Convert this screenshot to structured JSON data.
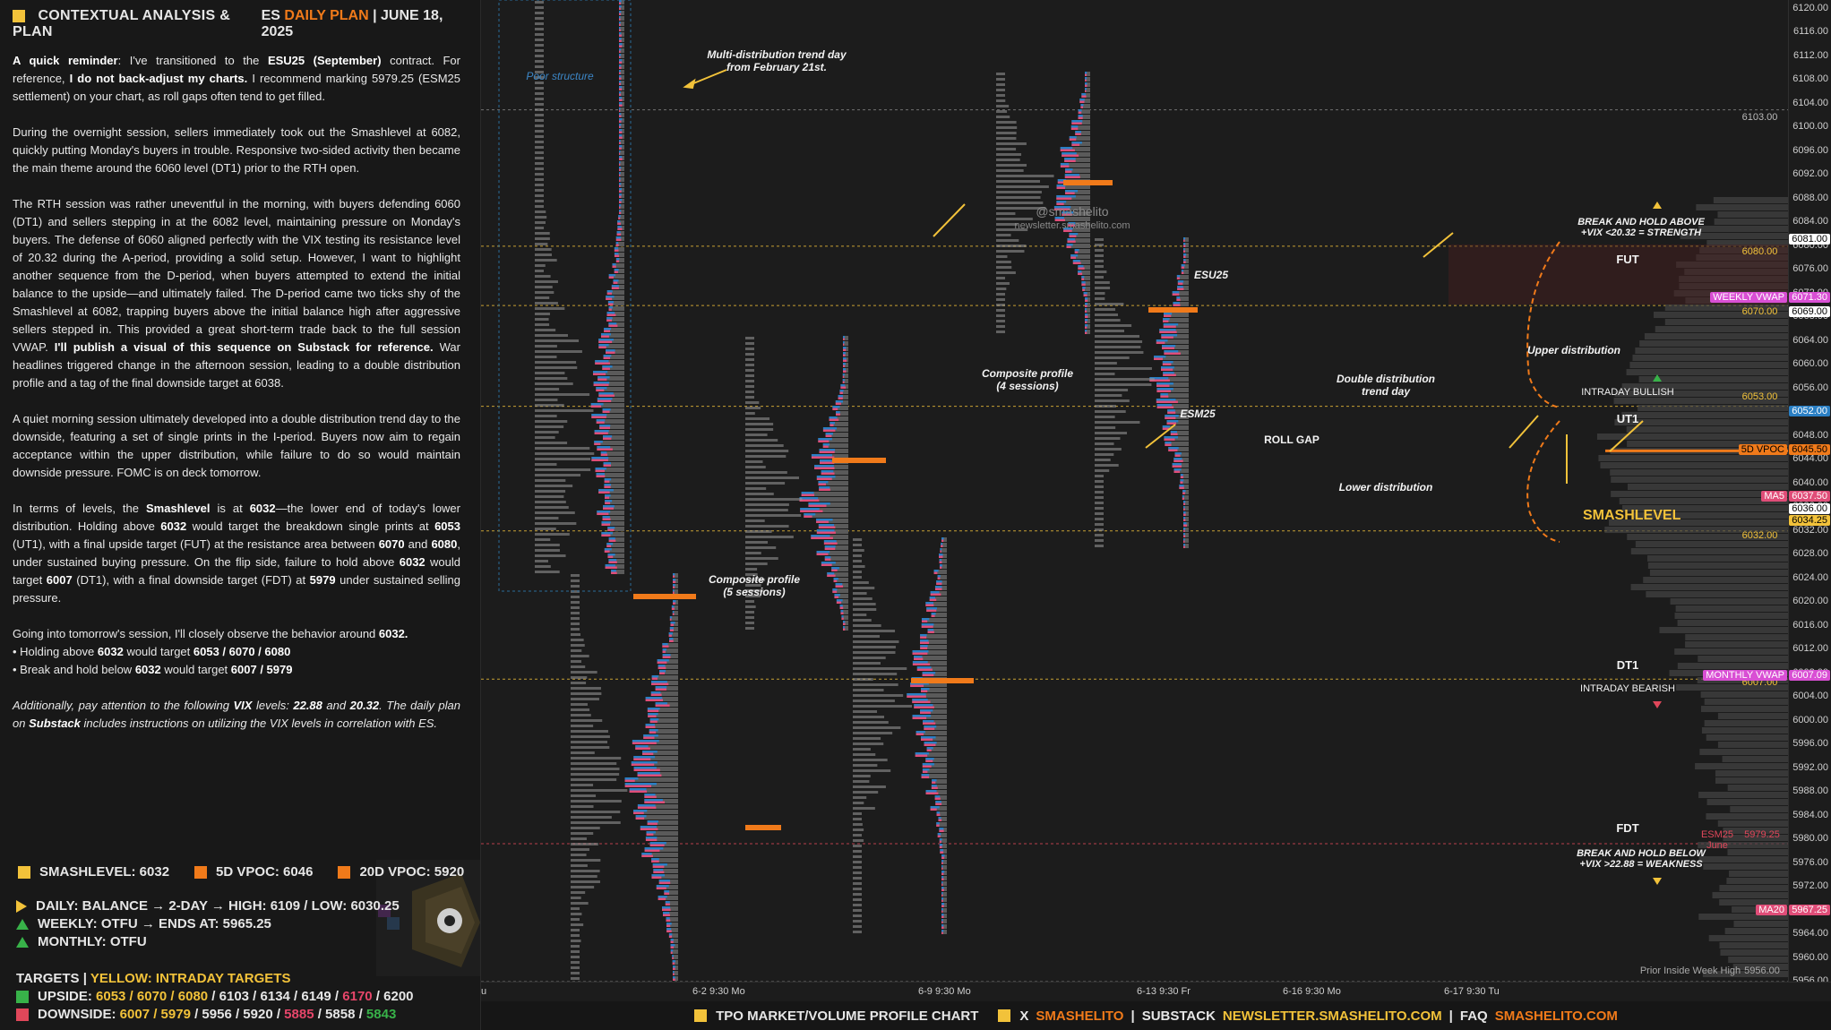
{
  "header": {
    "title": "CONTEXTUAL ANALYSIS & PLAN",
    "symbol": "ES",
    "plan": "DAILY PLAN",
    "sep": "|",
    "date": "JUNE 18, 2025"
  },
  "paragraphs": {
    "p1_a": "A quick reminder",
    "p1_b": ": I've transitioned to the ",
    "p1_c": "ESU25 (September)",
    "p1_d": " contract. For reference, ",
    "p1_e": "I do not back-adjust my charts.",
    "p1_f": " I recommend marking 5979.25 (ESM25 settlement) on your chart, as roll gaps often tend to get filled.",
    "p2": "During the overnight session, sellers immediately took out the Smashlevel at 6082, quickly putting Monday's buyers in trouble. Responsive two-sided activity then became the main theme around the 6060 level (DT1) prior to the RTH open.",
    "p3_a": "The RTH session was rather uneventful in the morning, with buyers defending 6060 (DT1) and sellers stepping in at the 6082 level, maintaining pressure on Monday's buyers. The defense of 6060 aligned perfectly with the VIX testing its resistance level of 20.32 during the A-period, providing a solid setup. However, I want to highlight another sequence from the D-period, when buyers attempted to extend the initial balance to the upside—and ultimately failed. The D-period came two ticks shy of the Smashlevel at 6082, trapping buyers above the initial balance high after aggressive sellers stepped in. This provided a great short-term trade back to the full session VWAP. ",
    "p3_b": "I'll publish a visual of this sequence on Substack for reference.",
    "p3_c": " War headlines triggered change in the afternoon session, leading to a double distribution profile and a tag of the final downside target at 6038.",
    "p4": "A quiet morning session ultimately developed into a double distribution trend day to the downside, featuring a set of single prints in the I-period. Buyers now aim to regain acceptance within the upper distribution, while failure to do so would maintain downside pressure. FOMC is on deck tomorrow.",
    "p5_a": "In terms of levels, the ",
    "p5_b": "Smashlevel",
    "p5_c": " is at ",
    "p5_d": "6032",
    "p5_e": "—the lower end of today's lower distribution. Holding above ",
    "p5_f": "6032",
    "p5_g": " would target the breakdown single prints at ",
    "p5_h": "6053",
    "p5_i": " (UT1), with a final upside target (FUT) at the resistance area between ",
    "p5_j": "6070",
    "p5_k": " and ",
    "p5_l": "6080",
    "p5_m": ", under sustained buying pressure. On the flip side, failure to hold above ",
    "p5_n": "6032",
    "p5_o": " would target ",
    "p5_p": "6007",
    "p5_q": " (DT1), with a final downside target (FDT) at ",
    "p5_r": "5979",
    "p5_s": " under sustained selling pressure.",
    "p6_a": "Going into tomorrow's session, I'll closely observe the behavior around ",
    "p6_b": "6032.",
    "p6_c": "• Holding above ",
    "p6_d": "6032",
    "p6_e": " would target ",
    "p6_f": "6053 / 6070 / 6080",
    "p6_g": "• Break and hold below ",
    "p6_h": "6032",
    "p6_i": " would target ",
    "p6_j": "6007 / 5979",
    "p7_a": "Additionally, pay attention to the following ",
    "p7_b": "VIX",
    "p7_c": " levels: ",
    "p7_d": "22.88",
    "p7_e": " and ",
    "p7_f": "20.32",
    "p7_g": ". The daily plan on ",
    "p7_h": "Substack",
    "p7_i": " includes instructions on utilizing the VIX levels in correlation with ES."
  },
  "levels": {
    "smash": "SMASHLEVEL: 6032",
    "vpoc5": "5D VPOC: 6046",
    "vpoc20": "20D VPOC: 5920"
  },
  "status": {
    "daily": "DAILY: BALANCE → 2-DAY → HIGH: 6109 / LOW: 6030.25",
    "weekly": "WEEKLY: OTFU → ENDS AT: 5965.25",
    "monthly": "MONTHLY: OTFU"
  },
  "targets": {
    "title": "TARGETS",
    "sep": "|",
    "yellow_note": "YELLOW: INTRADAY TARGETS",
    "up_label": "UPSIDE: ",
    "up_y": "6053 / 6070 / 6080",
    "up_w": " / 6103 / 6134 / 6149 / ",
    "up_p": "6170",
    "up_end": " / 6200",
    "down_label": "DOWNSIDE: ",
    "down_y": "6007 / 5979",
    "down_w": " / 5956 / 5920 / ",
    "down_p": "5885",
    "down_m": " / 5858 / ",
    "down_g": "5843"
  },
  "annotations": {
    "poor": "Poor structure",
    "multi": "Multi-distribution trend day\nfrom February 21st.",
    "watermark_handle": "@smashelito",
    "watermark_url": "newsletter.smashelito.com",
    "esu25": "ESU25",
    "esm25": "ESM25",
    "composite4": "Composite profile\n(4 sessions)",
    "composite5": "Composite profile\n(5 sessions)",
    "rollgap": "ROLL GAP",
    "double": "Double distribution\ntrend day",
    "upper": "Upper distribution",
    "lower": "Lower distribution",
    "break_above": "BREAK AND HOLD ABOVE\n+VIX <20.32 = STRENGTH",
    "break_below": "BREAK AND HOLD BELOW\n+VIX >22.88 = WEAKNESS",
    "fut": "FUT",
    "ut1": "UT1",
    "dt1": "DT1",
    "fdt": "FDT",
    "smashlevel": "SMASHLEVEL",
    "intraday_bull": "INTRADAY BULLISH",
    "intraday_bear": "INTRADAY BEARISH",
    "esm25_june": "ESM25 June",
    "prior_inside": "Prior Inside Week High"
  },
  "level_values": {
    "v6103": "6103.00",
    "v6080": "6080.00",
    "v6070": "6070.00",
    "v6053": "6053.00",
    "v6032": "6032.00",
    "v6007": "6007.00",
    "v5979": "5979.25",
    "v5956": "5956.00"
  },
  "badges": {
    "b6081": "6081.00",
    "weekly_vwap": "WEEKLY VWAP",
    "b6071": "6071.30",
    "b6069": "6069.00",
    "b6052": "6052.00",
    "vpoc5d": "5D VPOC",
    "b6045": "6045.50",
    "ma5": "MA5",
    "b6037": "6037.50",
    "b6036": "6036.00",
    "b6034": "6034.25",
    "monthly_vwap": "MONTHLY VWAP",
    "b6007": "6007.09",
    "ma20": "MA20",
    "b5967": "5967.25"
  },
  "price_axis": [
    "6120.00",
    "6116.00",
    "6112.00",
    "6108.00",
    "6104.00",
    "6100.00",
    "6096.00",
    "6092.00",
    "6088.00",
    "6084.00",
    "6080.00",
    "6076.00",
    "6072.00",
    "6068.00",
    "6064.00",
    "6060.00",
    "6056.00",
    "6052.00",
    "6048.00",
    "6044.00",
    "6040.00",
    "6036.00",
    "6032.00",
    "6028.00",
    "6024.00",
    "6020.00",
    "6016.00",
    "6012.00",
    "6008.00",
    "6004.00",
    "6000.00",
    "5996.00",
    "5992.00",
    "5988.00",
    "5984.00",
    "5980.00",
    "5976.00",
    "5972.00",
    "5968.00",
    "5964.00",
    "5960.00",
    "5956.00"
  ],
  "time_axis": {
    "t0": "u",
    "t1": "6-2  9:30 Mo",
    "t2": "6-9  9:30 Mo",
    "t3": "6-13  9:30 Fr",
    "t4": "6-16  9:30 Mo",
    "t5": "6-17  9:30 Tu"
  },
  "footer": {
    "a": "TPO MARKET/VOLUME PROFILE CHART",
    "x": "X",
    "handle": "SMASHELITO",
    "sep": "|",
    "sub": "SUBSTACK",
    "url": "NEWSLETTER.SMASHELITO.COM",
    "sep2": "|",
    "faq": "FAQ",
    "faq_url": "SMASHELITO.COM"
  },
  "colors": {
    "accent_orange": "#f07a1a",
    "accent_yellow": "#f2c23a",
    "bull_green": "#38b249",
    "bear_red": "#e0475a",
    "vol_blue": "#2a7fc4",
    "vol_pink": "#e04d78",
    "vwap_magenta": "#d94fd4"
  }
}
